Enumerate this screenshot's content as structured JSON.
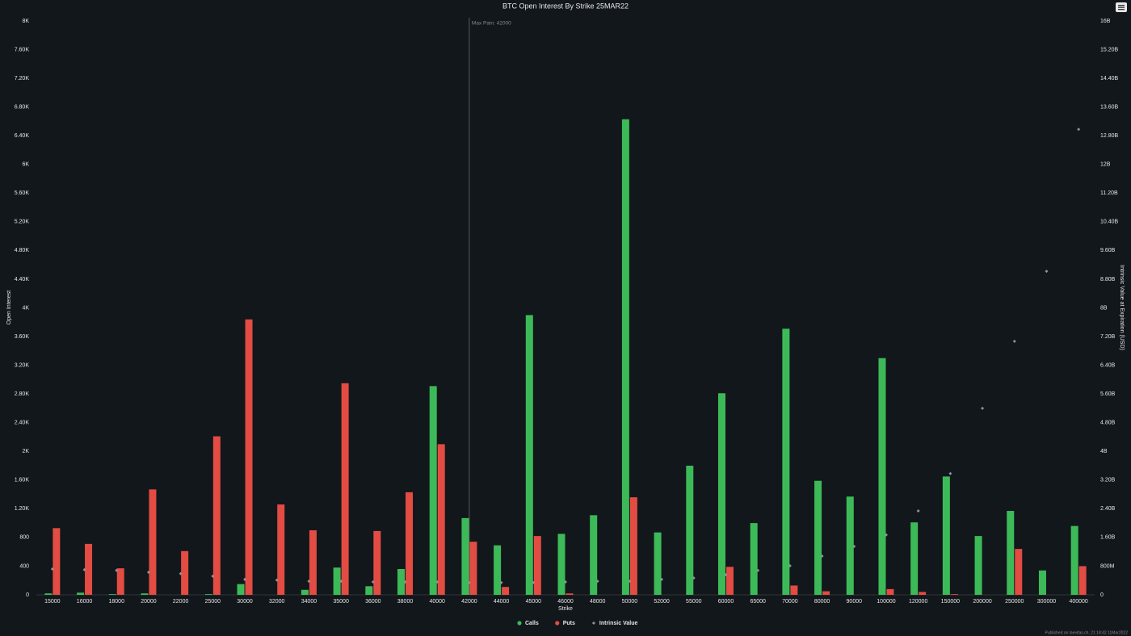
{
  "chart_data": {
    "type": "bar",
    "title": "BTC Open Interest By Strike 25MAR22",
    "x_label": "Strike",
    "y_label": "Open Interest",
    "y2_label": "Intrinsic Value at Expiration (USD)",
    "categories": [
      "15000",
      "16000",
      "18000",
      "20000",
      "22000",
      "25000",
      "30000",
      "32000",
      "34000",
      "35000",
      "36000",
      "38000",
      "40000",
      "42000",
      "44000",
      "45000",
      "46000",
      "48000",
      "50000",
      "52000",
      "55000",
      "60000",
      "65000",
      "70000",
      "80000",
      "90000",
      "100000",
      "120000",
      "150000",
      "200000",
      "250000",
      "300000",
      "400000"
    ],
    "series": [
      {
        "name": "Calls",
        "type": "bar",
        "color": "#3dba58",
        "values": [
          20,
          30,
          10,
          20,
          0,
          10,
          150,
          0,
          70,
          380,
          120,
          360,
          2910,
          1070,
          690,
          3900,
          850,
          1110,
          6630,
          870,
          1800,
          2810,
          1000,
          3710,
          1590,
          1370,
          3300,
          1010,
          1650,
          820,
          1170,
          340,
          960
        ]
      },
      {
        "name": "Puts",
        "type": "bar",
        "color": "#e24c43",
        "values": [
          930,
          710,
          370,
          1470,
          610,
          2210,
          3840,
          1260,
          900,
          2950,
          890,
          1430,
          2100,
          740,
          110,
          820,
          20,
          0,
          1360,
          0,
          0,
          390,
          0,
          130,
          50,
          0,
          80,
          40,
          10,
          0,
          640,
          0,
          400
        ]
      },
      {
        "name": "Intrinsic Value",
        "type": "scatter",
        "axis": "y2",
        "color": "#8e9399",
        "values": [
          720000000,
          700000000,
          680000000,
          630000000,
          590000000,
          520000000,
          430000000,
          410000000,
          380000000,
          380000000,
          360000000,
          360000000,
          360000000,
          340000000,
          340000000,
          340000000,
          360000000,
          380000000,
          380000000,
          430000000,
          470000000,
          560000000,
          680000000,
          810000000,
          1080000000,
          1350000000,
          1670000000,
          2340000000,
          3380000000,
          5200000000,
          7070000000,
          9020000000,
          12980000000
        ]
      }
    ],
    "ylim": [
      0,
      8000
    ],
    "yticks": [
      0,
      400,
      800,
      {
        "value": 1200,
        "label": "1.20K"
      },
      {
        "value": 1600,
        "label": "1.60K"
      },
      {
        "value": 2000,
        "label": "2K"
      },
      {
        "value": 2400,
        "label": "2.40K"
      },
      {
        "value": 2800,
        "label": "2.80K"
      },
      {
        "value": 3200,
        "label": "3.20K"
      },
      {
        "value": 3600,
        "label": "3.60K"
      },
      {
        "value": 4000,
        "label": "4K"
      },
      {
        "value": 4400,
        "label": "4.40K"
      },
      {
        "value": 4800,
        "label": "4.80K"
      },
      {
        "value": 5200,
        "label": "5.20K"
      },
      {
        "value": 5600,
        "label": "5.60K"
      },
      {
        "value": 6000,
        "label": "6K"
      },
      {
        "value": 6400,
        "label": "6.40K"
      },
      {
        "value": 6800,
        "label": "6.80K"
      },
      {
        "value": 7200,
        "label": "7.20K"
      },
      {
        "value": 7600,
        "label": "7.60K"
      },
      {
        "value": 8000,
        "label": "8K"
      }
    ],
    "y2lim": [
      0,
      16000000000
    ],
    "y2ticks": [
      0,
      {
        "value": 800000000,
        "label": "800M"
      },
      {
        "value": 1600000000,
        "label": "1.60B"
      },
      {
        "value": 2400000000,
        "label": "2.40B"
      },
      {
        "value": 3200000000,
        "label": "3.20B"
      },
      {
        "value": 4000000000,
        "label": "4B"
      },
      {
        "value": 4800000000,
        "label": "4.80B"
      },
      {
        "value": 5600000000,
        "label": "5.60B"
      },
      {
        "value": 6400000000,
        "label": "6.40B"
      },
      {
        "value": 7200000000,
        "label": "7.20B"
      },
      {
        "value": 8000000000,
        "label": "8B"
      },
      {
        "value": 8800000000,
        "label": "8.80B"
      },
      {
        "value": 9600000000,
        "label": "9.60B"
      },
      {
        "value": 10400000000,
        "label": "10.40B"
      },
      {
        "value": 11200000000,
        "label": "11.20B"
      },
      {
        "value": 12000000000,
        "label": "12B"
      },
      {
        "value": 12800000000,
        "label": "12.80B"
      },
      {
        "value": 13600000000,
        "label": "13.60B"
      },
      {
        "value": 14400000000,
        "label": "14.40B"
      },
      {
        "value": 15200000000,
        "label": "15.20B"
      },
      {
        "value": 16000000000,
        "label": "16B"
      }
    ],
    "annotation": {
      "text": "Max Pain: 42000",
      "x": "42000"
    },
    "grid": false,
    "legend": "bottom",
    "footer": "Published on laevitas.ch, 21:18:42 11Mar2022"
  }
}
